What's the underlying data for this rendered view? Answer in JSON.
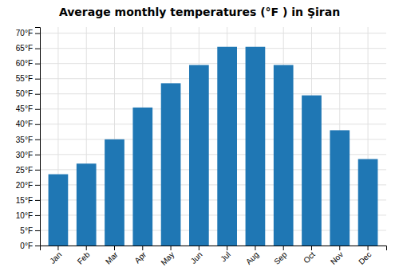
{
  "chart_data": {
    "type": "bar",
    "title": "Average monthly temperatures (°F ) in Şiran",
    "categories": [
      "Jan",
      "Feb",
      "Mar",
      "Apr",
      "May",
      "Jun",
      "Jul",
      "Aug",
      "Sep",
      "Oct",
      "Nov",
      "Dec"
    ],
    "values": [
      23.5,
      27,
      35,
      45.5,
      53.5,
      59.5,
      65.5,
      65.5,
      59.5,
      49.5,
      38,
      28.5
    ],
    "ylim": [
      0,
      72
    ],
    "yticks": [
      {
        "value": 0,
        "label": "0°F"
      },
      {
        "value": 5,
        "label": "5°F"
      },
      {
        "value": 10,
        "label": "10°F"
      },
      {
        "value": 15,
        "label": "15°F"
      },
      {
        "value": 20,
        "label": "20°F"
      },
      {
        "value": 25,
        "label": "25°F"
      },
      {
        "value": 30,
        "label": "30°F"
      },
      {
        "value": 35,
        "label": "35°F"
      },
      {
        "value": 40,
        "label": "40°F"
      },
      {
        "value": 45,
        "label": "45°F"
      },
      {
        "value": 50,
        "label": "50°F"
      },
      {
        "value": 55,
        "label": "55°F"
      },
      {
        "value": 60,
        "label": "60°F"
      },
      {
        "value": 65,
        "label": "65°F"
      },
      {
        "value": 70,
        "label": "70°F"
      }
    ],
    "grid": true
  }
}
